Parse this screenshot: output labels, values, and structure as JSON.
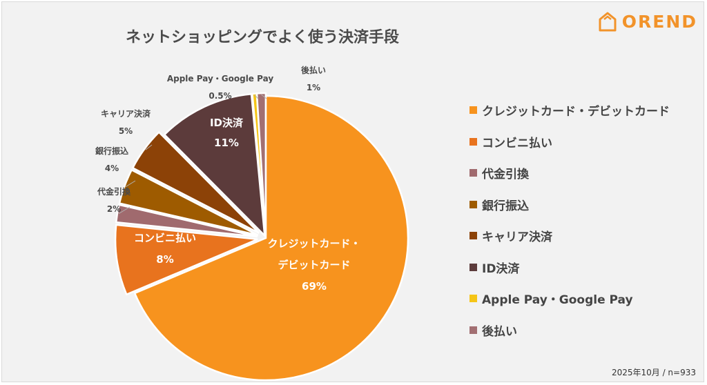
{
  "logo": {
    "text": "OREND",
    "icon": "house-icon",
    "color": "#f2932a"
  },
  "title": "ネットショッピングでよく使う決済手段",
  "footer": "2025年10月 / n=933",
  "chart_data": {
    "type": "pie",
    "title": "ネットショッピングでよく使う決済手段",
    "start": "12 o'clock, clockwise",
    "legend_position": "right",
    "slices": [
      {
        "label": "クレジットカード・デビットカード",
        "inside_label": [
          "クレジットカード・",
          "デビットカード"
        ],
        "value": 69,
        "display": "69%",
        "color": "#f7931e"
      },
      {
        "label": "コンビニ払い",
        "inside_label": [
          "コンビニ払い"
        ],
        "value": 8,
        "display": "8%",
        "color": "#e8731e"
      },
      {
        "label": "代金引換",
        "value": 2,
        "display": "2%",
        "color": "#a06a6e"
      },
      {
        "label": "銀行振込",
        "value": 4,
        "display": "4%",
        "color": "#9e5b00"
      },
      {
        "label": "キャリア決済",
        "value": 5,
        "display": "5%",
        "color": "#8c4207"
      },
      {
        "label": "ID決済",
        "inside_label": [
          "ID決済"
        ],
        "value": 11,
        "display": "11%",
        "color": "#5c3b3b"
      },
      {
        "label": "Apple Pay・Google Pay",
        "value": 0.5,
        "display": "0.5%",
        "color": "#f5c518"
      },
      {
        "label": "後払い",
        "value": 1,
        "display": "1%",
        "color": "#a26f72"
      }
    ]
  }
}
